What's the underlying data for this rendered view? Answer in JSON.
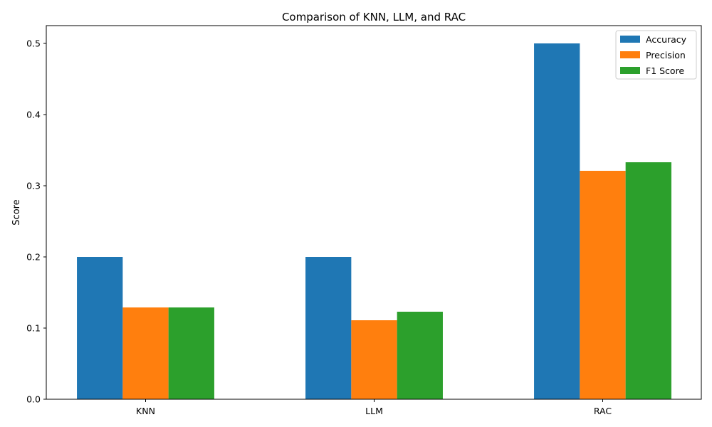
{
  "chart_data": {
    "type": "bar",
    "title": "Comparison of KNN, LLM, and RAC",
    "xlabel": "",
    "ylabel": "Score",
    "categories": [
      "KNN",
      "LLM",
      "RAC"
    ],
    "series": [
      {
        "name": "Accuracy",
        "color": "#1f77b4",
        "values": [
          0.2,
          0.2,
          0.5
        ]
      },
      {
        "name": "Precision",
        "color": "#ff7f0e",
        "values": [
          0.129,
          0.111,
          0.321
        ]
      },
      {
        "name": "F1 Score",
        "color": "#2ca02c",
        "values": [
          0.129,
          0.123,
          0.333
        ]
      }
    ],
    "ylim": [
      0,
      0.525
    ],
    "yticks": [
      0.0,
      0.1,
      0.2,
      0.3,
      0.4,
      0.5
    ],
    "ytick_labels": [
      "0.0",
      "0.1",
      "0.2",
      "0.3",
      "0.4",
      "0.5"
    ],
    "grid": false,
    "legend_position": "top-right"
  }
}
